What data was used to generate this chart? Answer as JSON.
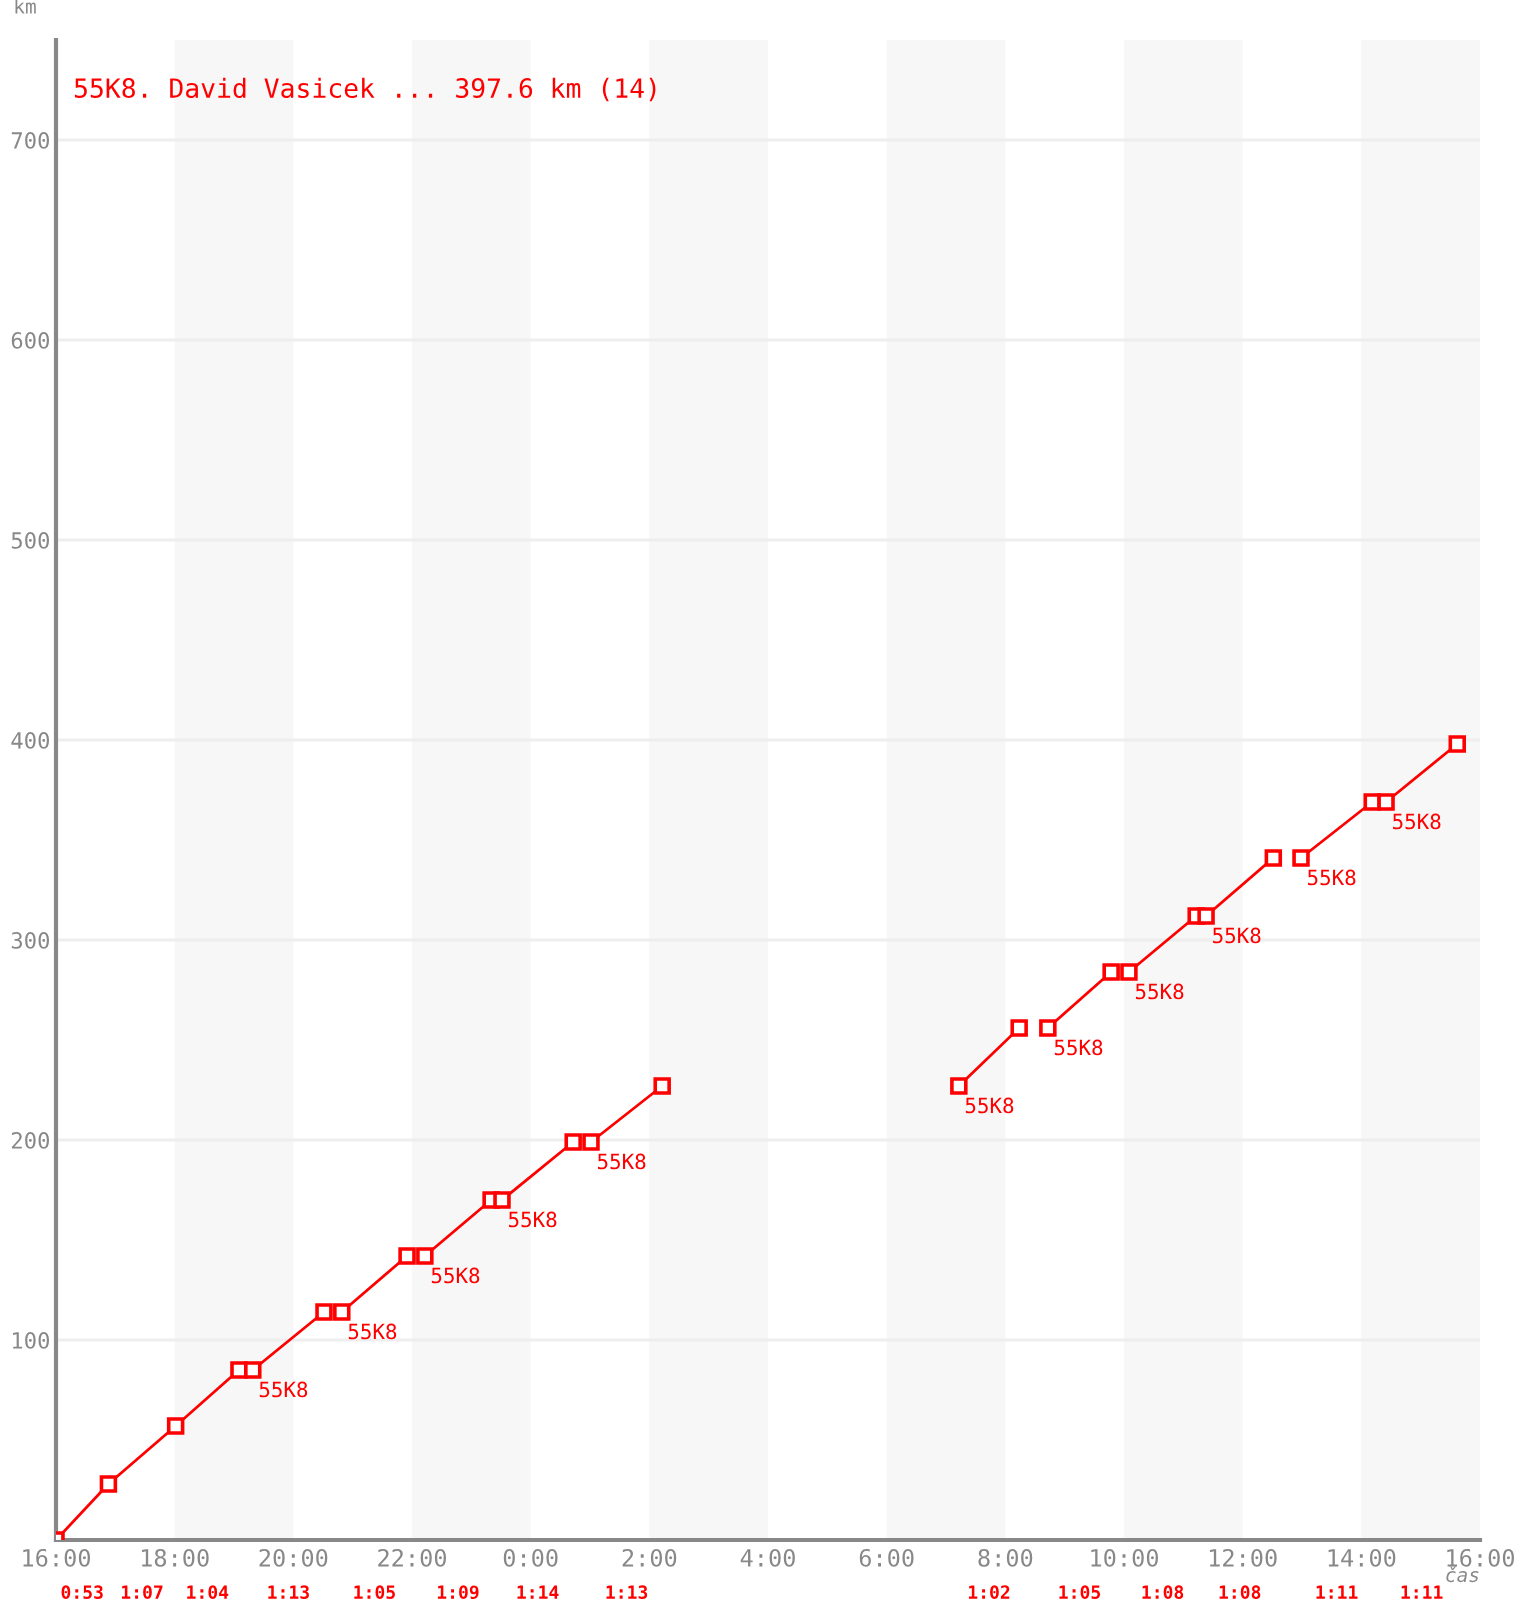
{
  "chart_data": {
    "type": "line",
    "title": "55K8. David Vasicek ... 397.6 km (14)",
    "ylabel": "km",
    "xlabel": "čas",
    "series": [
      {
        "color": "#ff0000",
        "x": [
          "2000-01-01T16:00",
          "2000-01-01T16:53",
          "2000-01-01T18:01",
          "2000-01-01T19:05"
        ],
        "values": [
          0,
          28,
          57,
          85
        ]
      },
      {
        "color": "#ff0000",
        "x": [
          "2000-01-01T19:19",
          "2000-01-01T20:31"
        ],
        "values": [
          85,
          114
        ]
      },
      {
        "color": "#ff0000",
        "x": [
          "2000-01-01T20:49",
          "2000-01-01T21:55"
        ],
        "values": [
          114,
          142
        ]
      },
      {
        "color": "#ff0000",
        "x": [
          "2000-01-01T22:13",
          "2000-01-01T23:20"
        ],
        "values": [
          142,
          170
        ]
      },
      {
        "color": "#ff0000",
        "x": [
          "2000-01-01T23:31",
          "2000-01-02T00:43"
        ],
        "values": [
          170,
          199
        ]
      },
      {
        "color": "#ff0000",
        "x": [
          "2000-01-02T01:01",
          "2000-01-02T02:13"
        ],
        "values": [
          199,
          227
        ]
      },
      {
        "color": "#ff0000",
        "x": [
          "2000-01-02T07:13",
          "2000-01-02T08:14"
        ],
        "values": [
          227,
          256
        ]
      },
      {
        "color": "#ff0000",
        "x": [
          "2000-01-02T08:43",
          "2000-01-02T09:47"
        ],
        "values": [
          256,
          284
        ]
      },
      {
        "color": "#ff0000",
        "x": [
          "2000-01-02T10:05",
          "2000-01-02T11:13"
        ],
        "values": [
          284,
          312
        ]
      },
      {
        "color": "#ff0000",
        "x": [
          "2000-01-02T11:23",
          "2000-01-02T12:31"
        ],
        "values": [
          312,
          341
        ]
      },
      {
        "color": "#ff0000",
        "x": [
          "2000-01-02T12:59",
          "2000-01-02T14:11"
        ],
        "values": [
          341,
          369
        ]
      },
      {
        "color": "#ff0000",
        "x": [
          "2000-01-02T14:25",
          "2000-01-02T15:37"
        ],
        "values": [
          369,
          398
        ]
      }
    ],
    "annotations": [
      {
        "text": "55K8",
        "x": "2000-01-01T19:19",
        "y": 85
      },
      {
        "text": "55K8",
        "x": "2000-01-01T20:49",
        "y": 114
      },
      {
        "text": "55K8",
        "x": "2000-01-01T22:13",
        "y": 142
      },
      {
        "text": "55K8",
        "x": "2000-01-01T23:31",
        "y": 170
      },
      {
        "text": "55K8",
        "x": "2000-01-02T01:01",
        "y": 199
      },
      {
        "text": "55K8",
        "x": "2000-01-02T07:13",
        "y": 227
      },
      {
        "text": "55K8",
        "x": "2000-01-02T08:43",
        "y": 256
      },
      {
        "text": "55K8",
        "x": "2000-01-02T10:05",
        "y": 284
      },
      {
        "text": "55K8",
        "x": "2000-01-02T11:23",
        "y": 312
      },
      {
        "text": "55K8",
        "x": "2000-01-02T12:59",
        "y": 341
      },
      {
        "text": "55K8",
        "x": "2000-01-02T14:25",
        "y": 369
      },
      "0:53",
      "1:07",
      "1:04",
      "1:13",
      "1:05",
      "1:09",
      "1:14",
      "1:13",
      "1:02",
      "1:05",
      "1:08",
      "1:08",
      "1:11",
      "1:11"
    ],
    "bands": [
      {
        "axis": "x",
        "from": "2000-01-01T18:00",
        "to": "2000-01-01T20:00",
        "color": "#f7f7f7"
      },
      {
        "axis": "x",
        "from": "2000-01-01T22:00",
        "to": "2000-01-02T00:00",
        "color": "#f7f7f7"
      },
      {
        "axis": "x",
        "from": "2000-01-02T02:00",
        "to": "2000-01-02T04:00",
        "color": "#f7f7f7"
      },
      {
        "axis": "x",
        "from": "2000-01-02T06:00",
        "to": "2000-01-02T08:00",
        "color": "#f7f7f7"
      },
      {
        "axis": "x",
        "from": "2000-01-02T10:00",
        "to": "2000-01-02T12:00",
        "color": "#f7f7f7"
      },
      {
        "axis": "x",
        "from": "2000-01-02T14:00",
        "to": "2000-01-02T16:00",
        "color": "#f7f7f7"
      }
    ],
    "xlim": [
      "2000-01-01T16:00",
      "2000-01-02T16:00"
    ],
    "xticks": [
      {
        "value": "2000-01-01T16:00",
        "label": "16:00"
      },
      {
        "value": "2000-01-01T18:00",
        "label": "18:00"
      },
      {
        "value": "2000-01-01T20:00",
        "label": "20:00"
      },
      {
        "value": "2000-01-01T22:00",
        "label": "22:00"
      },
      {
        "value": "2000-01-02T00:00",
        "label": "0:00"
      },
      {
        "value": "2000-01-02T02:00",
        "label": "2:00"
      },
      {
        "value": "2000-01-02T04:00",
        "label": "4:00"
      },
      {
        "value": "2000-01-02T06:00",
        "label": "6:00"
      },
      {
        "value": "2000-01-02T08:00",
        "label": "8:00"
      },
      {
        "value": "2000-01-02T10:00",
        "label": "10:00"
      },
      {
        "value": "2000-01-02T12:00",
        "label": "12:00"
      },
      {
        "value": "2000-01-02T14:00",
        "label": "14:00"
      },
      {
        "value": "2000-01-02T16:00",
        "label": "16:00"
      }
    ],
    "ylim": [
      0,
      750
    ],
    "yticks": [
      100,
      200,
      300,
      400,
      500,
      600,
      700
    ],
    "grid": "y",
    "marker": "square",
    "line_style": "solid",
    "legend": false
  }
}
